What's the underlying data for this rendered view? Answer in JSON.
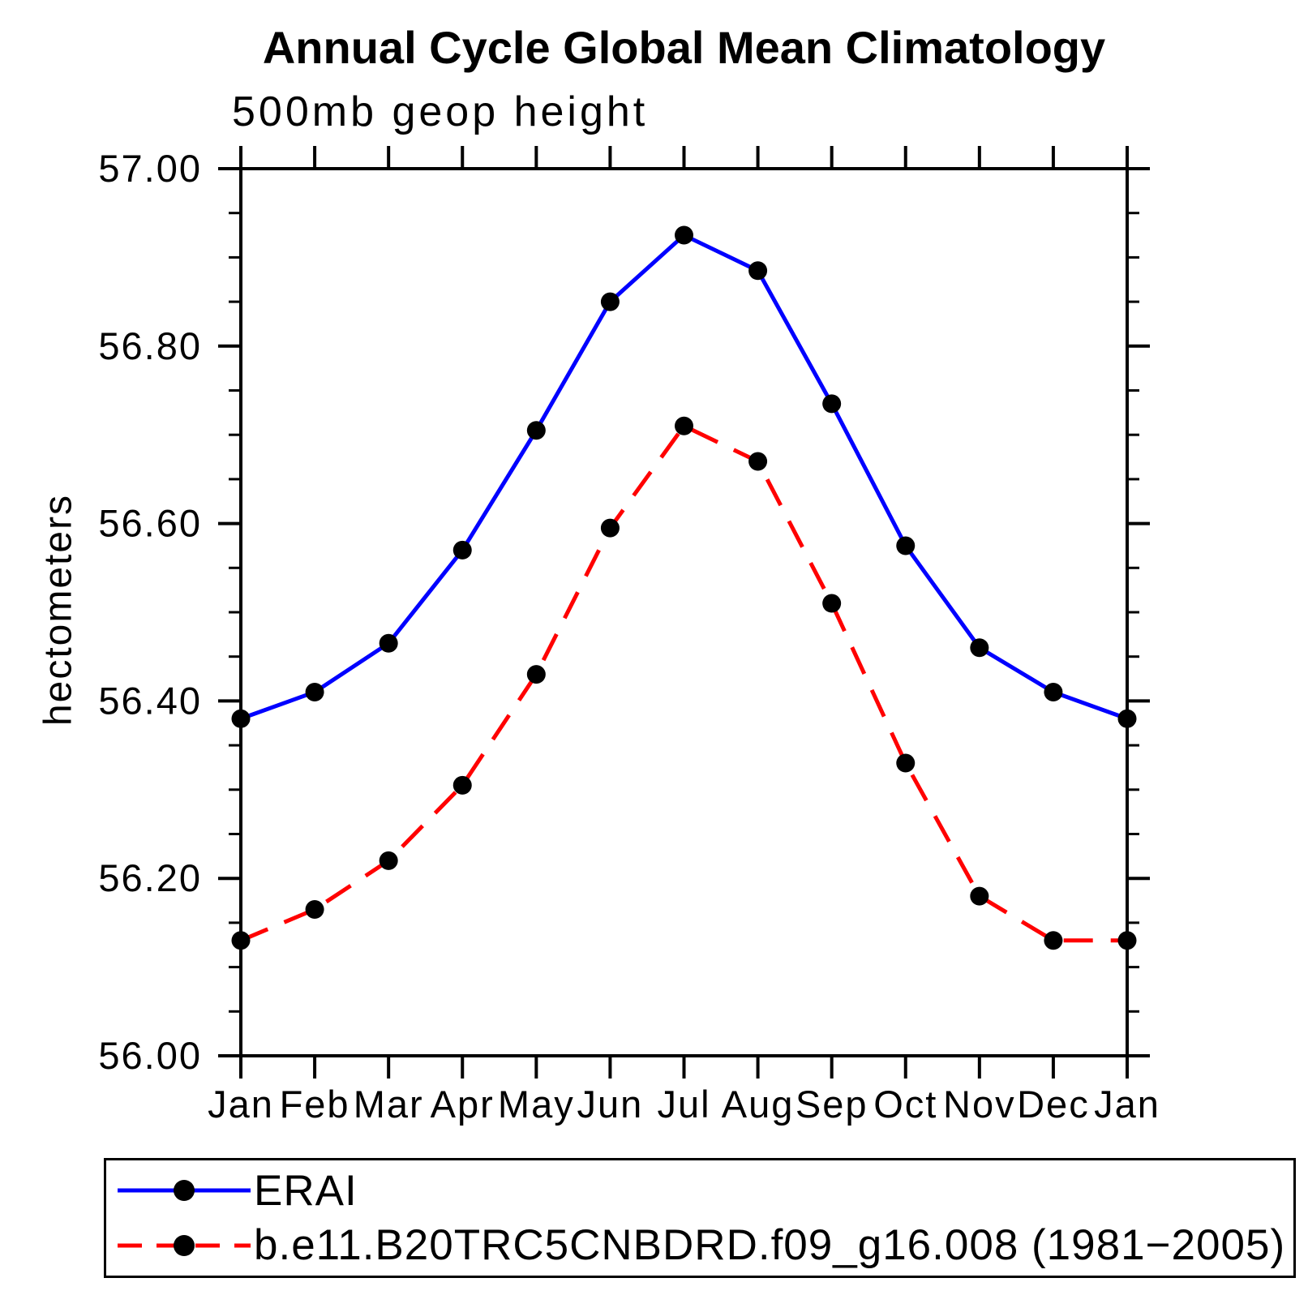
{
  "page": {
    "background": "#ffffff"
  },
  "chart_data": {
    "type": "line",
    "title": "Annual Cycle Global Mean Climatology",
    "subtitle": "500mb geop height",
    "ylabel": "hectometers",
    "xlabel": "",
    "categories": [
      "Jan",
      "Feb",
      "Mar",
      "Apr",
      "May",
      "Jun",
      "Jul",
      "Aug",
      "Sep",
      "Oct",
      "Nov",
      "Dec",
      "Jan"
    ],
    "ylim": [
      56.0,
      57.0
    ],
    "yticks": [
      {
        "v": 56.0,
        "label": "56.00"
      },
      {
        "v": 56.2,
        "label": "56.20"
      },
      {
        "v": 56.4,
        "label": "56.40"
      },
      {
        "v": 56.6,
        "label": "56.60"
      },
      {
        "v": 56.8,
        "label": "56.80"
      },
      {
        "v": 57.0,
        "label": "57.00"
      }
    ],
    "ytick_minor_step": 0.05,
    "grid": false,
    "legend_position": "bottom",
    "axis_color": "#000000",
    "marker_color": "#000000",
    "series": [
      {
        "name": "ERAI",
        "color": "#0000ff",
        "line_style": "solid",
        "marker": "filled-circle",
        "values": [
          56.38,
          56.41,
          56.465,
          56.57,
          56.705,
          56.85,
          56.925,
          56.885,
          56.735,
          56.575,
          56.46,
          56.41,
          56.38
        ]
      },
      {
        "name": "b.e11.B20TRC5CNBDRD.f09_g16.008 (1981−2005)",
        "color": "#ff0000",
        "line_style": "dashed",
        "marker": "filled-circle",
        "values": [
          56.13,
          56.165,
          56.22,
          56.305,
          56.43,
          56.595,
          56.71,
          56.67,
          56.51,
          56.33,
          56.18,
          56.13,
          56.13
        ]
      }
    ]
  }
}
